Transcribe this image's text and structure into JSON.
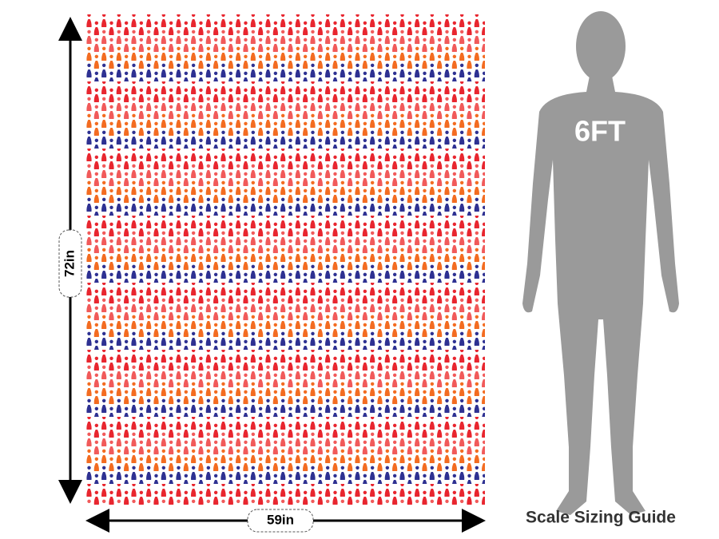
{
  "height_label": "72in",
  "width_label": "59in",
  "figure_label": "6FT",
  "caption": "Scale Sizing Guide"
}
